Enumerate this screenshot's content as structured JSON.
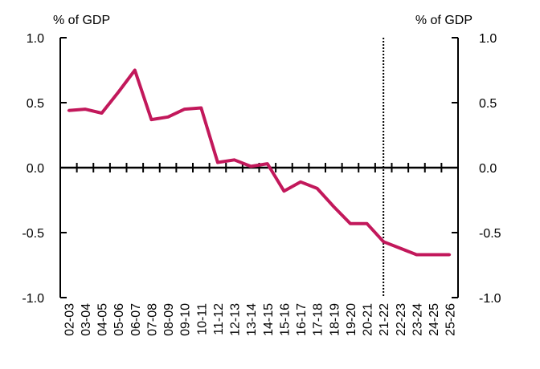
{
  "chart_data": {
    "type": "line",
    "title": "",
    "xlabel": "",
    "ylabel": "% of GDP",
    "y2label": "% of GDP",
    "ylim": [
      -1.0,
      1.0
    ],
    "yticks": [
      1.0,
      0.5,
      0.0,
      -0.5,
      -1.0
    ],
    "ytick_labels": [
      "1.0",
      "0.5",
      "0.0",
      "-0.5",
      "-1.0"
    ],
    "grid": false,
    "legend": "none",
    "categories": [
      "02-03",
      "03-04",
      "04-05",
      "05-06",
      "06-07",
      "07-08",
      "08-09",
      "09-10",
      "10-11",
      "11-12",
      "12-13",
      "13-14",
      "14-15",
      "15-16",
      "16-17",
      "17-18",
      "18-19",
      "19-20",
      "20-21",
      "21-22",
      "22-23",
      "23-24",
      "24-25",
      "25-26"
    ],
    "series": [
      {
        "color": "#c2185b",
        "values": [
          0.44,
          0.45,
          0.42,
          0.58,
          0.75,
          0.37,
          0.39,
          0.45,
          0.46,
          0.04,
          0.06,
          0.01,
          0.03,
          -0.18,
          -0.11,
          -0.16,
          -0.3,
          -0.43,
          -0.43,
          -0.57,
          -0.62,
          -0.67,
          -0.67,
          -0.67
        ]
      }
    ],
    "forecast_divider_after": "21-22",
    "colors": {
      "line": "#c2185b",
      "axis": "#000000",
      "divider": "#000000"
    }
  }
}
